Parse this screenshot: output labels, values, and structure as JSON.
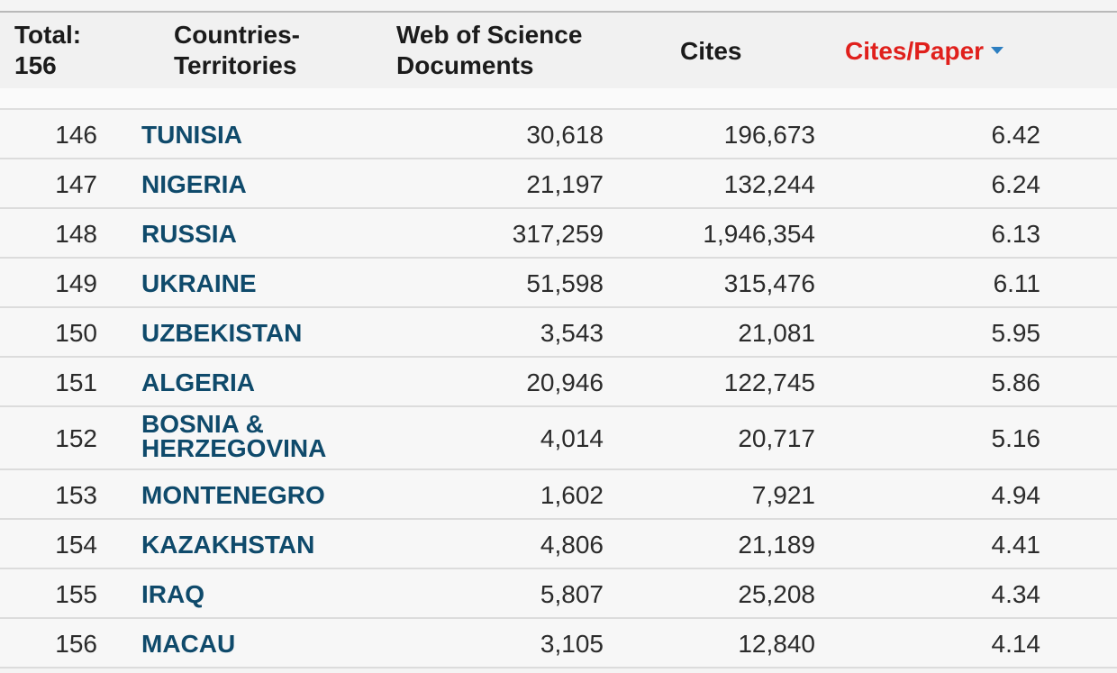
{
  "header": {
    "total_label": "Total:",
    "total_value": "156",
    "country_line1": "Countries-",
    "country_line2": "Territories",
    "wos_line1": "Web of Science",
    "wos_line2": "Documents",
    "cites": "Cites",
    "cites_per_paper": "Cites/Paper"
  },
  "rows": [
    {
      "rank": "146",
      "country": "TUNISIA",
      "documents": "30,618",
      "cites": "196,673",
      "cites_per_paper": "6.42"
    },
    {
      "rank": "147",
      "country": "NIGERIA",
      "documents": "21,197",
      "cites": "132,244",
      "cites_per_paper": "6.24"
    },
    {
      "rank": "148",
      "country": "RUSSIA",
      "documents": "317,259",
      "cites": "1,946,354",
      "cites_per_paper": "6.13"
    },
    {
      "rank": "149",
      "country": "UKRAINE",
      "documents": "51,598",
      "cites": "315,476",
      "cites_per_paper": "6.11"
    },
    {
      "rank": "150",
      "country": "UZBEKISTAN",
      "documents": "3,543",
      "cites": "21,081",
      "cites_per_paper": "5.95"
    },
    {
      "rank": "151",
      "country": "ALGERIA",
      "documents": "20,946",
      "cites": "122,745",
      "cites_per_paper": "5.86"
    },
    {
      "rank": "152",
      "country": "BOSNIA & HERZEGOVINA",
      "country_line1": "BOSNIA &",
      "country_line2": "HERZEGOVINA",
      "documents": "4,014",
      "cites": "20,717",
      "cites_per_paper": "5.16"
    },
    {
      "rank": "153",
      "country": "MONTENEGRO",
      "documents": "1,602",
      "cites": "7,921",
      "cites_per_paper": "4.94"
    },
    {
      "rank": "154",
      "country": "KAZAKHSTAN",
      "documents": "4,806",
      "cites": "21,189",
      "cites_per_paper": "4.41"
    },
    {
      "rank": "155",
      "country": "IRAQ",
      "documents": "5,807",
      "cites": "25,208",
      "cites_per_paper": "4.34"
    },
    {
      "rank": "156",
      "country": "MACAU",
      "documents": "3,105",
      "cites": "12,840",
      "cites_per_paper": "4.14"
    }
  ],
  "colors": {
    "country_link": "#0f4a6b",
    "active_sort": "#e0201c",
    "sort_arrow": "#2d7fc1"
  },
  "icons": {
    "sort_indicator": "sort-descending-icon"
  }
}
